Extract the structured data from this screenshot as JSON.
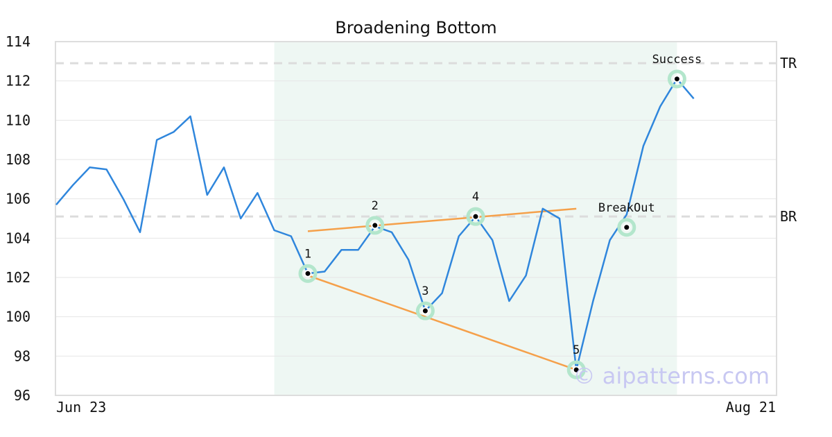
{
  "chart_data": {
    "type": "line",
    "title": "Broadening Bottom",
    "xlabel": "",
    "ylabel": "",
    "x_tick_labels": [
      "Jun 23",
      "Aug 21"
    ],
    "y_ticks": [
      96,
      98,
      100,
      102,
      104,
      106,
      108,
      110,
      112,
      114
    ],
    "ylim": [
      96,
      114
    ],
    "grid": "horizontal",
    "series": [
      {
        "color": "#2f86dc",
        "values": [
          105.7,
          106.7,
          107.6,
          107.5,
          106.0,
          104.3,
          109.0,
          109.4,
          110.2,
          106.2,
          107.6,
          105.0,
          106.3,
          104.4,
          104.1,
          102.2,
          102.3,
          103.4,
          103.4,
          104.6,
          104.3,
          102.9,
          100.3,
          101.2,
          104.1,
          105.1,
          103.9,
          100.8,
          102.1,
          105.5,
          105.0,
          97.3,
          100.8,
          103.9,
          105.2,
          108.7,
          110.7,
          112.1,
          111.1
        ]
      }
    ],
    "shaded_region": {
      "start_index": 13,
      "end_index": 37,
      "color": "#eef7f3"
    },
    "levels": [
      {
        "label": "TR",
        "value": 112.9
      },
      {
        "label": "BR",
        "value": 105.1
      }
    ],
    "trendlines": [
      {
        "color": "#f5a04a",
        "from": {
          "index": 15,
          "value": 104.35
        },
        "to": {
          "index": 31,
          "value": 105.5
        }
      },
      {
        "color": "#f5a04a",
        "from": {
          "index": 15,
          "value": 102.1
        },
        "to": {
          "index": 31,
          "value": 97.3
        }
      }
    ],
    "points": [
      {
        "label": "1",
        "index": 15,
        "value": 102.2,
        "label_pos": "above"
      },
      {
        "label": "2",
        "index": 19,
        "value": 104.65,
        "label_pos": "above"
      },
      {
        "label": "3",
        "index": 22,
        "value": 100.3,
        "label_pos": "above"
      },
      {
        "label": "4",
        "index": 25,
        "value": 105.1,
        "label_pos": "above"
      },
      {
        "label": "5",
        "index": 31,
        "value": 97.3,
        "label_pos": "above"
      },
      {
        "label": "BreakOut",
        "index": 34,
        "value": 104.55,
        "label_pos": "above"
      },
      {
        "label": "Success",
        "index": 37,
        "value": 112.1,
        "label_pos": "above"
      }
    ],
    "watermark": "© aipatterns.com"
  }
}
